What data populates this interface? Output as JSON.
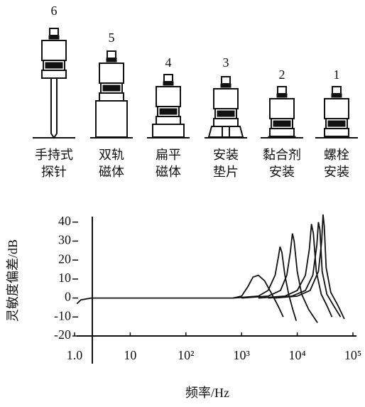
{
  "mounts": [
    {
      "number": "6",
      "label": [
        "手持式",
        "探针"
      ]
    },
    {
      "number": "5",
      "label": [
        "双轨",
        "磁体"
      ]
    },
    {
      "number": "4",
      "label": [
        "扁平",
        "磁体"
      ]
    },
    {
      "number": "3",
      "label": [
        "安装",
        "垫片"
      ]
    },
    {
      "number": "2",
      "label": [
        "黏合剂",
        "安装"
      ]
    },
    {
      "number": "1",
      "label": [
        "螺栓",
        "安装"
      ]
    }
  ],
  "chart_data": {
    "type": "line",
    "x_label": "频率/Hz",
    "y_label": "灵敏度偏差/dB",
    "log_x": true,
    "xlim": [
      1,
      100000
    ],
    "ylim": [
      -20,
      44
    ],
    "xticks": [
      {
        "value": 1,
        "label": "1.0"
      },
      10,
      {
        "value": 100,
        "label": "10²"
      },
      {
        "value": 1000,
        "label": "10³"
      },
      {
        "value": 10000,
        "label": "10⁴"
      },
      {
        "value": 100000,
        "label": "10⁵"
      }
    ],
    "yticks": [
      -20,
      -10,
      0,
      10,
      20,
      30,
      40
    ],
    "color": "#111111",
    "series": [
      {
        "x": [
          1.1,
          1.3,
          2,
          100,
          700,
          1000,
          1300,
          1600,
          2000,
          2600,
          3500,
          4500,
          5600
        ],
        "values": [
          -3,
          -1,
          0,
          0,
          0,
          1,
          6,
          11,
          12,
          9,
          2,
          -4,
          -10
        ]
      },
      {
        "x": [
          700,
          2000,
          3000,
          4000,
          4600,
          4900,
          5300,
          6000,
          7000,
          8300,
          9600
        ],
        "values": [
          0,
          1,
          4,
          12,
          22,
          27,
          24,
          12,
          2,
          -6,
          -12
        ]
      },
      {
        "x": [
          1000,
          3000,
          5000,
          6500,
          7500,
          8200,
          8800,
          10000,
          12000,
          16000,
          23000
        ],
        "values": [
          0,
          1,
          4,
          12,
          24,
          34,
          30,
          14,
          2,
          -6,
          -13
        ]
      },
      {
        "x": [
          2000,
          6000,
          10000,
          14000,
          16500,
          18000,
          19500,
          22000,
          27000,
          34000,
          42000
        ],
        "values": [
          0,
          1,
          4,
          12,
          26,
          39,
          34,
          14,
          2,
          -4,
          -10
        ]
      },
      {
        "x": [
          3000,
          8000,
          14000,
          19000,
          22500,
          24000,
          25500,
          28000,
          34000,
          45000,
          60000
        ],
        "values": [
          0,
          1,
          4,
          12,
          28,
          40,
          36,
          14,
          2,
          -4,
          -10
        ]
      },
      {
        "x": [
          4000,
          10000,
          17000,
          24000,
          27500,
          29000,
          30500,
          33000,
          40000,
          54000,
          70000
        ],
        "values": [
          0,
          1,
          4,
          14,
          30,
          44,
          38,
          16,
          3,
          -4,
          -11
        ]
      }
    ]
  }
}
